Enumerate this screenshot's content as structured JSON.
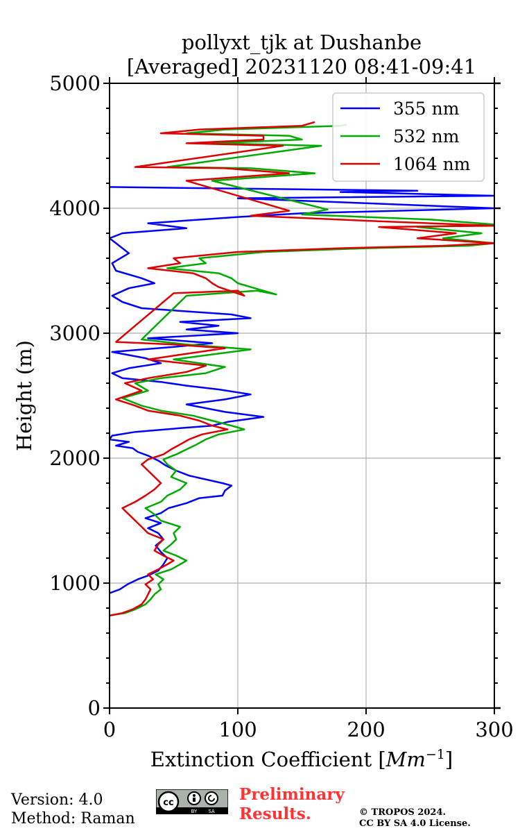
{
  "chart_data": {
    "type": "line",
    "title": "pollyxt_tjk at Dushanbe",
    "subtitle": "[Averaged] 20231120 08:41-09:41",
    "xlabel": "Extinction Coefficient [",
    "xlabel_unit": "Mm",
    "xlabel_exp": "−1",
    "xlabel_close": "]",
    "ylabel": "Height (m)",
    "xlim": [
      0,
      300
    ],
    "ylim": [
      0,
      5000
    ],
    "x_ticks": [
      0,
      100,
      200,
      300
    ],
    "x_tick_labels": [
      "0",
      "100",
      "200",
      "300"
    ],
    "y_ticks": [
      0,
      1000,
      2000,
      3000,
      4000,
      5000
    ],
    "y_tick_labels": [
      "0",
      "1000",
      "2000",
      "3000",
      "4000",
      "5000"
    ],
    "grid": true,
    "legend_position": "top-right",
    "series": [
      {
        "name": "355 nm",
        "color": "#0000ff",
        "points": [
          [
            0,
            920
          ],
          [
            8,
            950
          ],
          [
            14,
            990
          ],
          [
            22,
            1030
          ],
          [
            30,
            1060
          ],
          [
            38,
            1100
          ],
          [
            42,
            1150
          ],
          [
            45,
            1200
          ],
          [
            40,
            1250
          ],
          [
            36,
            1300
          ],
          [
            42,
            1350
          ],
          [
            38,
            1400
          ],
          [
            30,
            1440
          ],
          [
            40,
            1480
          ],
          [
            28,
            1520
          ],
          [
            40,
            1560
          ],
          [
            46,
            1600
          ],
          [
            60,
            1640
          ],
          [
            70,
            1680
          ],
          [
            88,
            1700
          ],
          [
            90,
            1740
          ],
          [
            95,
            1780
          ],
          [
            88,
            1800
          ],
          [
            75,
            1830
          ],
          [
            62,
            1860
          ],
          [
            52,
            1900
          ],
          [
            44,
            1940
          ],
          [
            38,
            1980
          ],
          [
            30,
            2020
          ],
          [
            22,
            2050
          ],
          [
            18,
            2080
          ],
          [
            5,
            2100
          ],
          [
            15,
            2130
          ],
          [
            0,
            2150
          ],
          [
            2,
            2180
          ],
          [
            20,
            2210
          ],
          [
            55,
            2240
          ],
          [
            80,
            2260
          ],
          [
            92,
            2290
          ],
          [
            120,
            2330
          ],
          [
            90,
            2370
          ],
          [
            75,
            2400
          ],
          [
            60,
            2430
          ],
          [
            90,
            2470
          ],
          [
            110,
            2510
          ],
          [
            85,
            2550
          ],
          [
            60,
            2580
          ],
          [
            40,
            2610
          ],
          [
            10,
            2640
          ],
          [
            2,
            2680
          ],
          [
            15,
            2720
          ],
          [
            40,
            2760
          ],
          [
            28,
            2800
          ],
          [
            2,
            2850
          ],
          [
            50,
            2890
          ],
          [
            80,
            2920
          ],
          [
            30,
            2960
          ],
          [
            100,
            3000
          ],
          [
            60,
            3030
          ],
          [
            85,
            3060
          ],
          [
            55,
            3090
          ],
          [
            110,
            3120
          ],
          [
            95,
            3150
          ],
          [
            25,
            3200
          ],
          [
            10,
            3250
          ],
          [
            2,
            3300
          ],
          [
            15,
            3360
          ],
          [
            35,
            3400
          ],
          [
            25,
            3440
          ],
          [
            5,
            3500
          ],
          [
            2,
            3560
          ],
          [
            15,
            3640
          ],
          [
            5,
            3720
          ],
          [
            0,
            3760
          ],
          [
            10,
            3800
          ],
          [
            60,
            3840
          ],
          [
            30,
            3880
          ],
          [
            100,
            3930
          ],
          [
            150,
            3960
          ],
          [
            300,
            4000
          ],
          [
            200,
            4040
          ],
          [
            100,
            4080
          ],
          [
            300,
            4100
          ],
          [
            180,
            4130
          ],
          [
            240,
            4140
          ],
          [
            0,
            4170
          ]
        ]
      },
      {
        "name": "532 nm",
        "color": "#00aa00",
        "points": [
          [
            0,
            740
          ],
          [
            12,
            760
          ],
          [
            20,
            790
          ],
          [
            28,
            830
          ],
          [
            32,
            870
          ],
          [
            35,
            910
          ],
          [
            40,
            950
          ],
          [
            38,
            990
          ],
          [
            42,
            1030
          ],
          [
            36,
            1070
          ],
          [
            48,
            1110
          ],
          [
            55,
            1150
          ],
          [
            60,
            1180
          ],
          [
            52,
            1220
          ],
          [
            42,
            1260
          ],
          [
            48,
            1310
          ],
          [
            52,
            1350
          ],
          [
            50,
            1400
          ],
          [
            55,
            1450
          ],
          [
            40,
            1500
          ],
          [
            35,
            1550
          ],
          [
            28,
            1600
          ],
          [
            40,
            1650
          ],
          [
            45,
            1700
          ],
          [
            55,
            1750
          ],
          [
            60,
            1800
          ],
          [
            48,
            1850
          ],
          [
            52,
            1900
          ],
          [
            45,
            1950
          ],
          [
            42,
            1990
          ],
          [
            52,
            2030
          ],
          [
            60,
            2070
          ],
          [
            68,
            2110
          ],
          [
            75,
            2150
          ],
          [
            85,
            2190
          ],
          [
            105,
            2230
          ],
          [
            95,
            2260
          ],
          [
            80,
            2300
          ],
          [
            65,
            2340
          ],
          [
            40,
            2380
          ],
          [
            25,
            2420
          ],
          [
            10,
            2480
          ],
          [
            30,
            2540
          ],
          [
            20,
            2600
          ],
          [
            40,
            2640
          ],
          [
            75,
            2680
          ],
          [
            90,
            2730
          ],
          [
            50,
            2790
          ],
          [
            110,
            2870
          ],
          [
            60,
            2910
          ],
          [
            25,
            2950
          ],
          [
            60,
            3300
          ],
          [
            115,
            3340
          ],
          [
            130,
            3310
          ],
          [
            110,
            3370
          ],
          [
            100,
            3400
          ],
          [
            95,
            3440
          ],
          [
            85,
            3480
          ],
          [
            45,
            3520
          ],
          [
            75,
            3560
          ],
          [
            70,
            3600
          ],
          [
            120,
            3650
          ],
          [
            200,
            3680
          ],
          [
            280,
            3700
          ],
          [
            300,
            3720
          ],
          [
            260,
            3760
          ],
          [
            290,
            3800
          ],
          [
            240,
            3850
          ],
          [
            300,
            3870
          ],
          [
            250,
            3910
          ],
          [
            150,
            3950
          ],
          [
            170,
            3990
          ],
          [
            80,
            4220
          ],
          [
            160,
            4280
          ],
          [
            110,
            4320
          ],
          [
            45,
            4330
          ],
          [
            165,
            4500
          ],
          [
            80,
            4520
          ],
          [
            150,
            4550
          ],
          [
            140,
            4580
          ],
          [
            60,
            4600
          ],
          [
            90,
            4630
          ],
          [
            180,
            4660
          ],
          [
            185,
            4670
          ]
        ]
      },
      {
        "name": "1064 nm",
        "color": "#dd0000",
        "points": [
          [
            0,
            740
          ],
          [
            10,
            760
          ],
          [
            18,
            790
          ],
          [
            25,
            830
          ],
          [
            28,
            870
          ],
          [
            30,
            910
          ],
          [
            32,
            950
          ],
          [
            28,
            990
          ],
          [
            34,
            1030
          ],
          [
            30,
            1070
          ],
          [
            38,
            1110
          ],
          [
            45,
            1150
          ],
          [
            50,
            1180
          ],
          [
            42,
            1220
          ],
          [
            35,
            1260
          ],
          [
            38,
            1310
          ],
          [
            42,
            1350
          ],
          [
            30,
            1400
          ],
          [
            25,
            1450
          ],
          [
            20,
            1500
          ],
          [
            15,
            1550
          ],
          [
            10,
            1600
          ],
          [
            20,
            1650
          ],
          [
            28,
            1700
          ],
          [
            35,
            1750
          ],
          [
            40,
            1800
          ],
          [
            35,
            1850
          ],
          [
            30,
            1900
          ],
          [
            25,
            1950
          ],
          [
            30,
            1990
          ],
          [
            42,
            2030
          ],
          [
            48,
            2070
          ],
          [
            55,
            2110
          ],
          [
            62,
            2150
          ],
          [
            72,
            2190
          ],
          [
            92,
            2230
          ],
          [
            80,
            2260
          ],
          [
            70,
            2300
          ],
          [
            55,
            2340
          ],
          [
            30,
            2380
          ],
          [
            20,
            2420
          ],
          [
            5,
            2470
          ],
          [
            25,
            2540
          ],
          [
            12,
            2600
          ],
          [
            30,
            2640
          ],
          [
            60,
            2690
          ],
          [
            75,
            2740
          ],
          [
            30,
            2790
          ],
          [
            90,
            2880
          ],
          [
            50,
            2910
          ],
          [
            5,
            2930
          ],
          [
            50,
            3320
          ],
          [
            100,
            3340
          ],
          [
            105,
            3300
          ],
          [
            85,
            3370
          ],
          [
            80,
            3400
          ],
          [
            75,
            3440
          ],
          [
            65,
            3480
          ],
          [
            30,
            3520
          ],
          [
            55,
            3560
          ],
          [
            50,
            3600
          ],
          [
            100,
            3650
          ],
          [
            180,
            3680
          ],
          [
            260,
            3700
          ],
          [
            300,
            3720
          ],
          [
            240,
            3760
          ],
          [
            270,
            3800
          ],
          [
            210,
            3850
          ],
          [
            300,
            3860
          ],
          [
            200,
            3900
          ],
          [
            110,
            3940
          ],
          [
            140,
            3980
          ],
          [
            60,
            4220
          ],
          [
            140,
            4280
          ],
          [
            90,
            4320
          ],
          [
            20,
            4330
          ],
          [
            135,
            4500
          ],
          [
            60,
            4520
          ],
          [
            120,
            4550
          ],
          [
            120,
            4580
          ],
          [
            40,
            4600
          ],
          [
            70,
            4630
          ],
          [
            150,
            4660
          ],
          [
            160,
            4690
          ]
        ]
      }
    ]
  },
  "footer": {
    "version": "Version: 4.0",
    "method": "Method: Raman",
    "preliminary_line1": "Preliminary",
    "preliminary_line2": "Results.",
    "copyright_line1": "© TROPOS 2024.",
    "copyright_line2": "CC BY SA 4.0 License.",
    "cc_badge_left": "BY",
    "cc_badge_right": "SA"
  },
  "colors": {
    "prelim": "#ff3333",
    "grid": "#b0b0b0"
  }
}
